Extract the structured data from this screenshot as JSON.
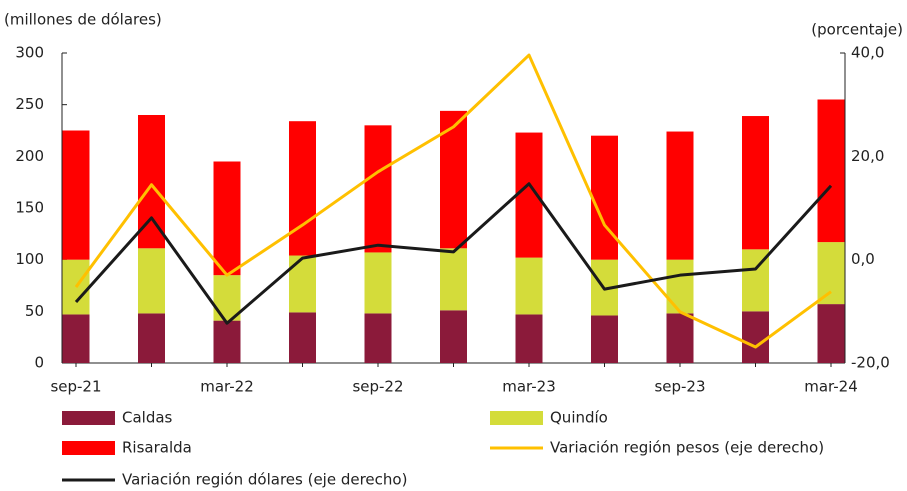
{
  "chart_data": {
    "type": "bar",
    "ylabel": "(millones de dólares)",
    "y2label": "(porcentaje)",
    "categories": [
      "sep-21",
      null,
      "mar-22",
      null,
      "sep-22",
      null,
      "mar-23",
      null,
      "sep-23",
      null,
      "mar-24"
    ],
    "series": [
      {
        "name": "Caldas",
        "color": "#8b1a3a",
        "type": "bar",
        "values": [
          47,
          48,
          41,
          49,
          48,
          51,
          47,
          46,
          48,
          50,
          57
        ]
      },
      {
        "name": "Quindío",
        "color": "#d4dc3a",
        "type": "bar",
        "values": [
          53,
          63,
          44,
          55,
          59,
          60,
          55,
          54,
          52,
          60,
          60
        ]
      },
      {
        "name": "Risaralda",
        "color": "#ff0000",
        "type": "bar",
        "values": [
          125,
          129,
          110,
          130,
          123,
          133,
          121,
          120,
          124,
          129,
          138
        ]
      },
      {
        "name": "Variación región pesos (eje derecho)",
        "color": "#ffc000",
        "type": "line",
        "axis": "y2",
        "values": [
          -5.3,
          14.5,
          -3.0,
          6.7,
          17.0,
          25.7,
          39.6,
          6.7,
          -10.1,
          -16.9,
          -6.2
        ]
      },
      {
        "name": "Variación región dólares (eje derecho)",
        "color": "#1a1a1a",
        "type": "line",
        "axis": "y2",
        "values": [
          -8.2,
          8.1,
          -12.3,
          0.3,
          2.8,
          1.5,
          14.7,
          -5.7,
          -3.0,
          -1.8,
          14.3
        ]
      }
    ],
    "ylim": [
      0,
      300
    ],
    "yticks": [
      0,
      50,
      100,
      150,
      200,
      250,
      300
    ],
    "y2lim": [
      -20,
      40
    ],
    "y2ticks": [
      {
        "value": -20,
        "label": "-20,0"
      },
      {
        "value": 0,
        "label": "0,0"
      },
      {
        "value": 20,
        "label": "20,0"
      },
      {
        "value": 40,
        "label": "40,0"
      }
    ],
    "stacked": true,
    "grid": false
  }
}
